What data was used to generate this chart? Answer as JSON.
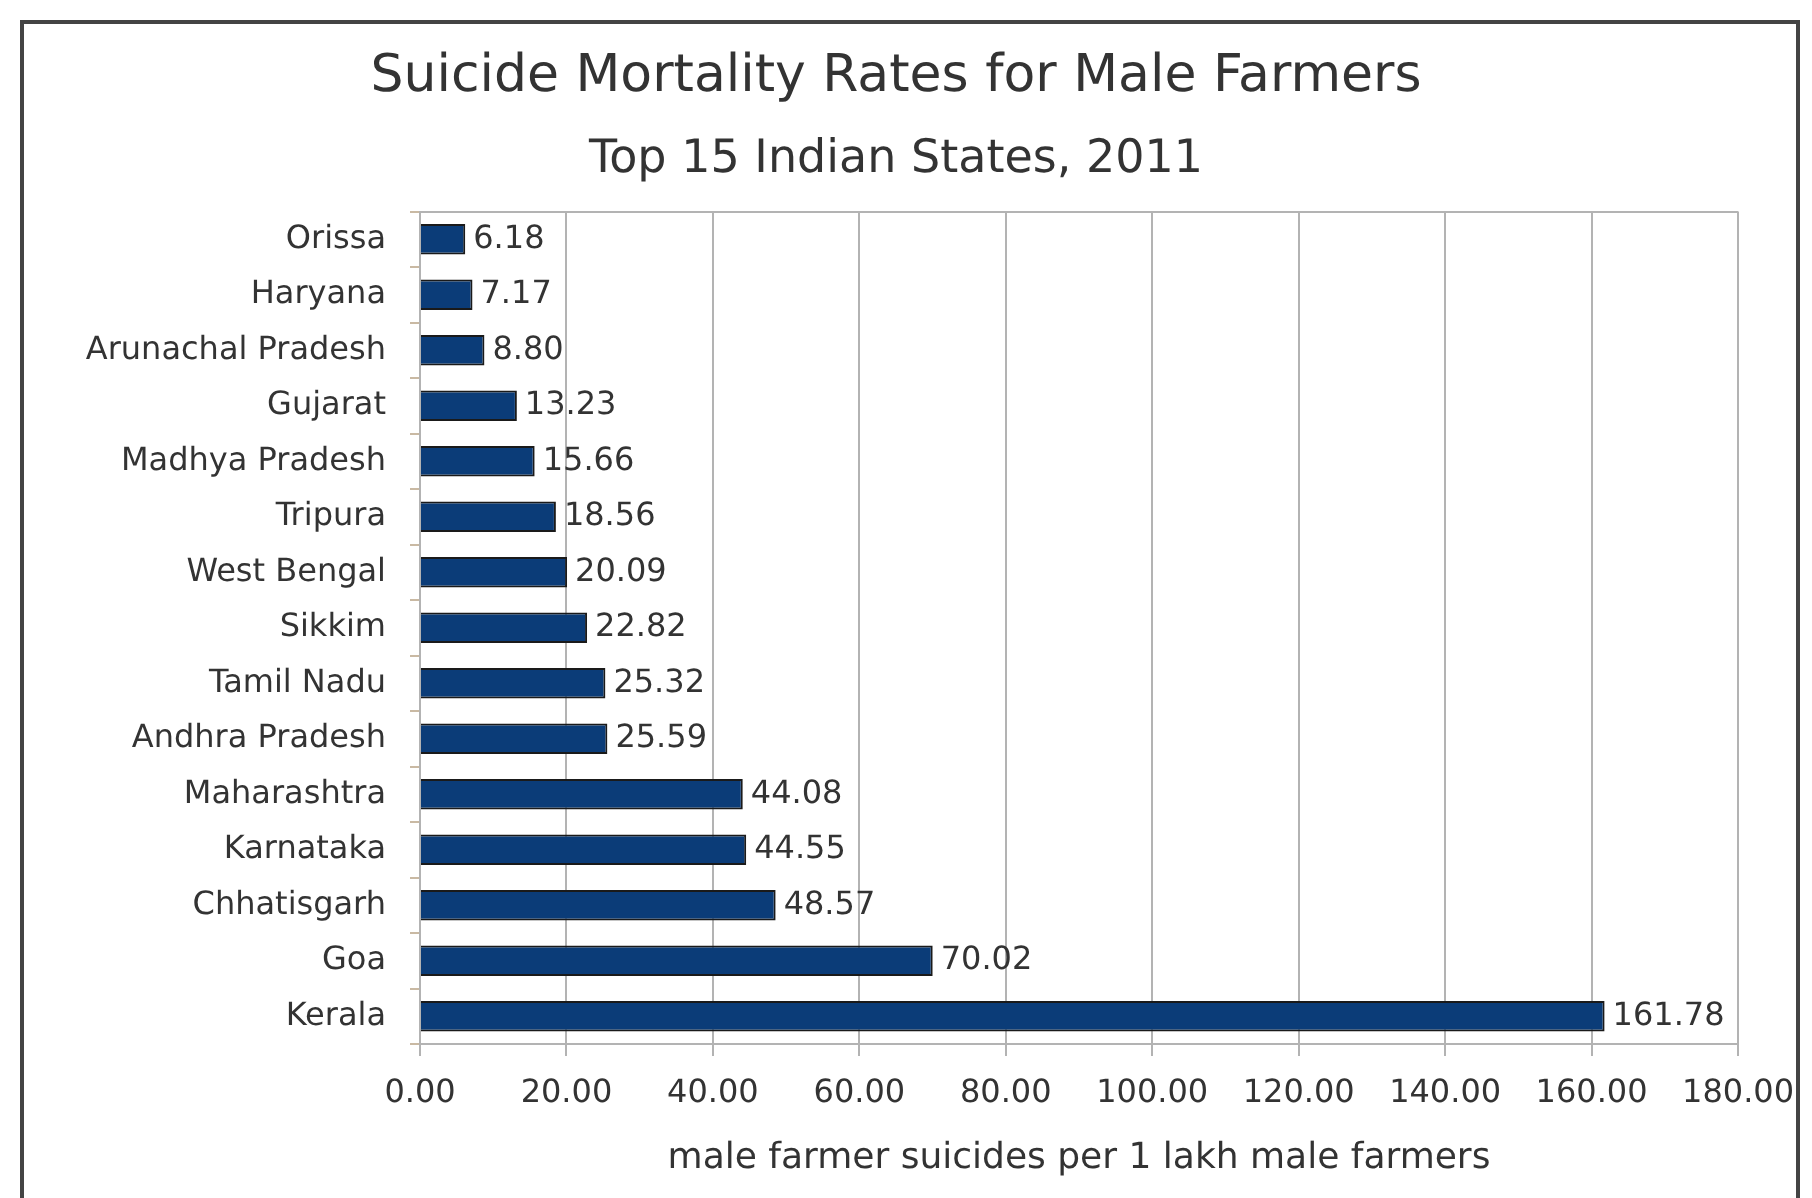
{
  "chart_data": {
    "type": "bar",
    "orientation": "horizontal",
    "title": "Suicide Mortality Rates for Male Farmers",
    "subtitle": "Top 15 Indian States, 2011",
    "xlabel": "male farmer suicides per 1 lakh male farmers",
    "categories": [
      "Orissa",
      "Haryana",
      "Arunachal Pradesh",
      "Gujarat",
      "Madhya Pradesh",
      "Tripura",
      "West Bengal",
      "Sikkim",
      "Tamil Nadu",
      "Andhra Pradesh",
      "Maharashtra",
      "Karnataka",
      "Chhatisgarh",
      "Goa",
      "Kerala"
    ],
    "values": [
      6.18,
      7.17,
      8.8,
      13.23,
      15.66,
      18.56,
      20.09,
      22.82,
      25.32,
      25.59,
      44.08,
      44.55,
      48.57,
      70.02,
      161.78
    ],
    "value_labels": [
      "6.18",
      "7.17",
      "8.80",
      "13.23",
      "15.66",
      "18.56",
      "20.09",
      "22.82",
      "25.32",
      "25.59",
      "44.08",
      "44.55",
      "48.57",
      "70.02",
      "161.78"
    ],
    "color": "#0b3c78",
    "xlim": [
      0,
      180
    ],
    "xticks": [
      {
        "value": 0,
        "label": "0.00"
      },
      {
        "value": 20,
        "label": "20.00"
      },
      {
        "value": 40,
        "label": "40.00"
      },
      {
        "value": 60,
        "label": "60.00"
      },
      {
        "value": 80,
        "label": "80.00"
      },
      {
        "value": 100,
        "label": "100.00"
      },
      {
        "value": 120,
        "label": "120.00"
      },
      {
        "value": 140,
        "label": "140.00"
      },
      {
        "value": 160,
        "label": "160.00"
      },
      {
        "value": 180,
        "label": "180.00"
      }
    ],
    "grid": "x",
    "legend": false
  }
}
